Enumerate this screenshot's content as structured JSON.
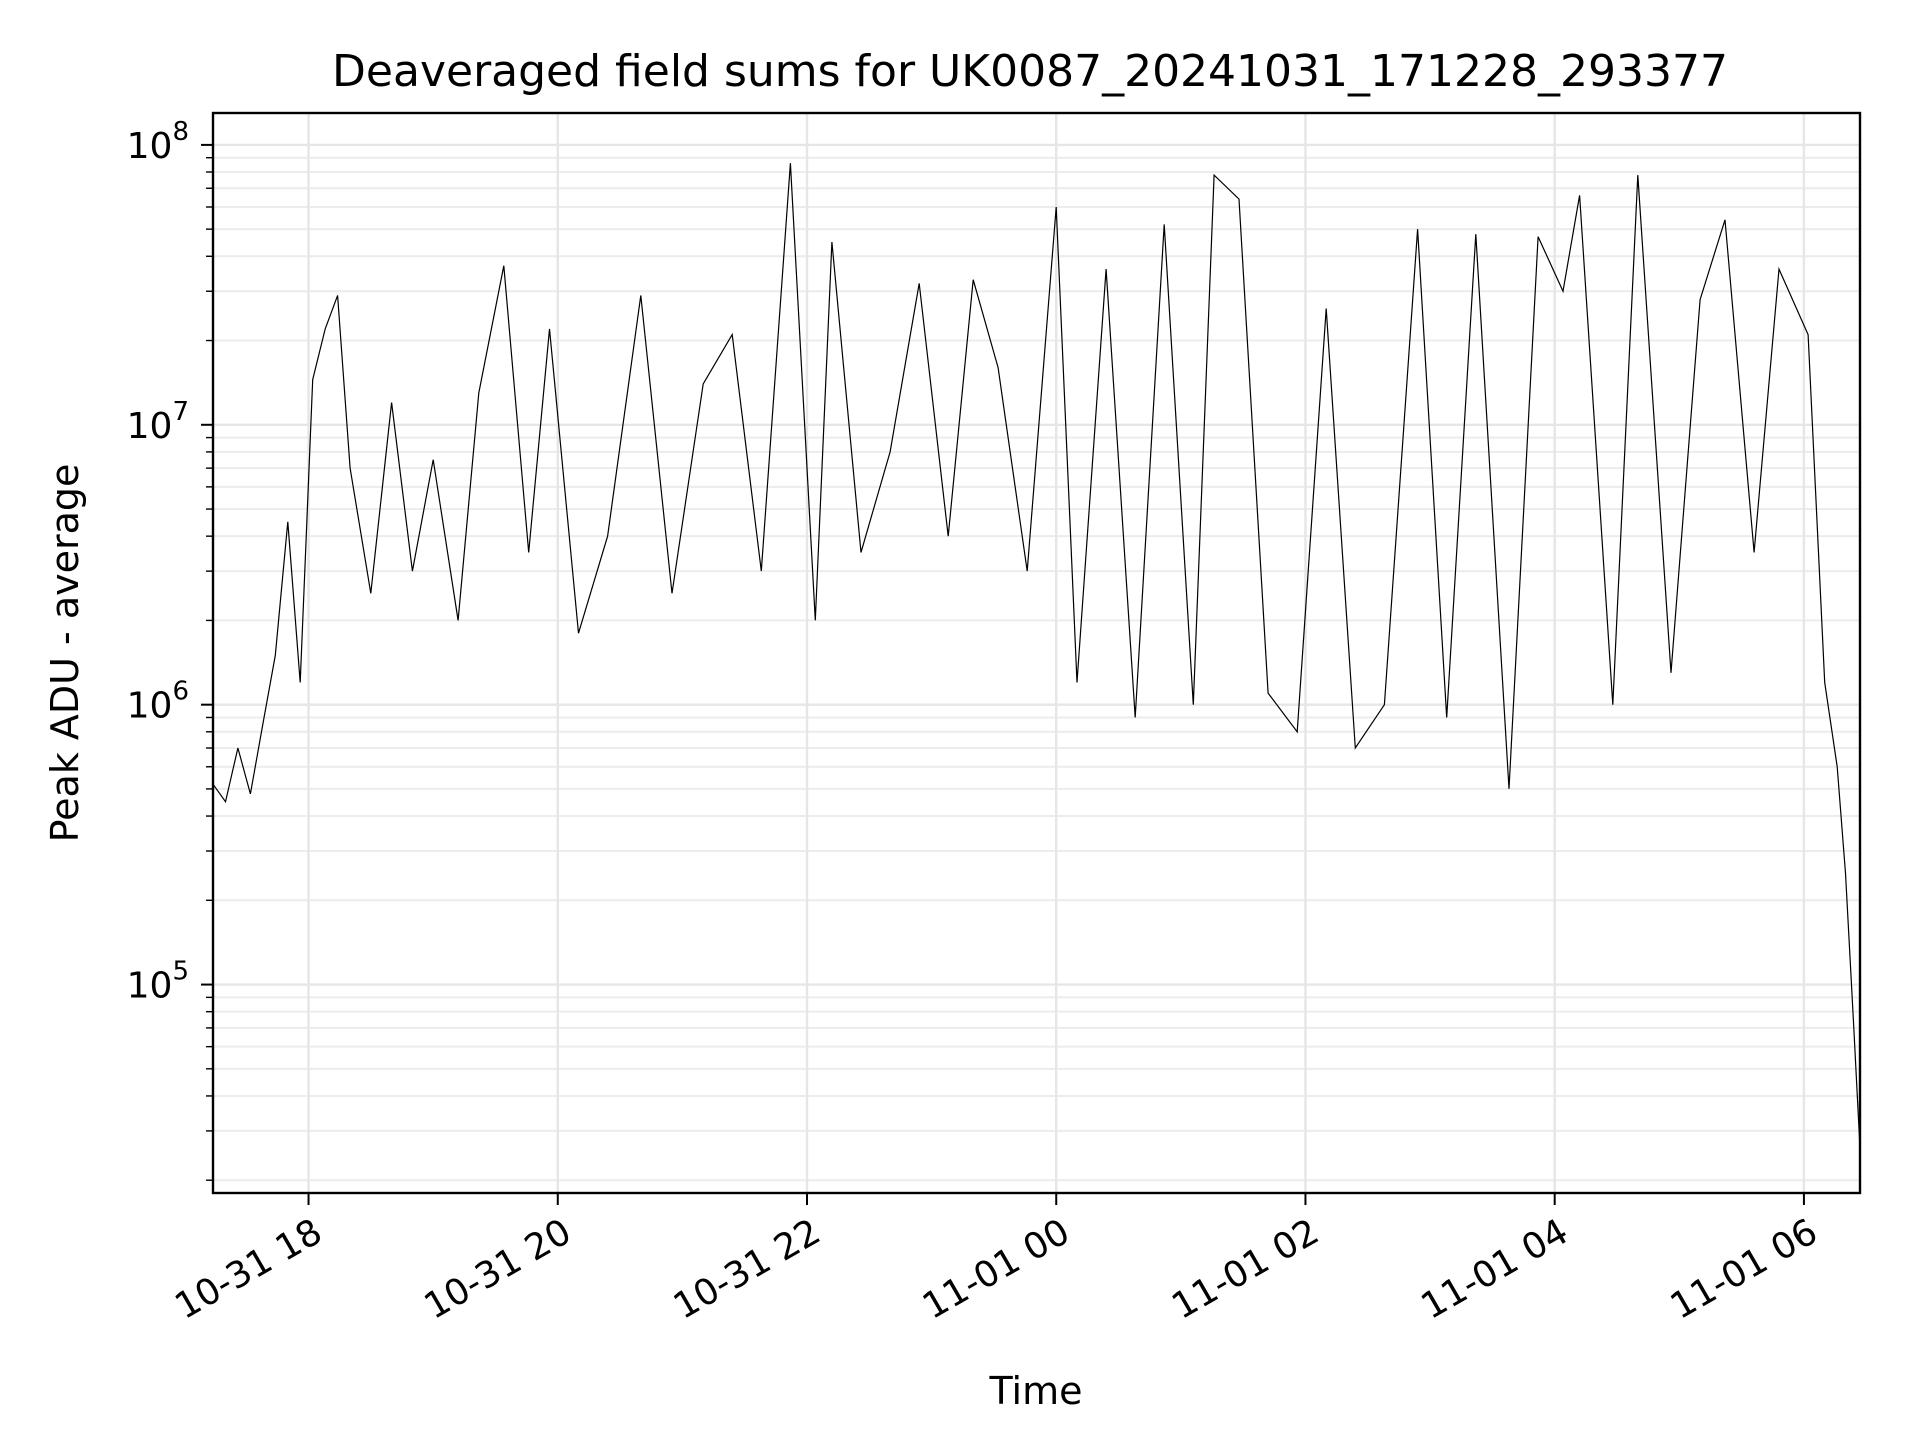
{
  "chart_data": {
    "type": "line",
    "title": "Deaveraged field sums for UK0087_20241031_171228_293377",
    "xlabel": "Time",
    "ylabel": "Peak ADU - average",
    "yscale": "log",
    "ylim": [
      18000,
      130000000
    ],
    "xlim": [
      "2024-10-31 17:14",
      "2024-11-01 06:27"
    ],
    "x_ticks": [
      {
        "value": "2024-10-31 18:00",
        "label": "10-31 18"
      },
      {
        "value": "2024-10-31 20:00",
        "label": "10-31 20"
      },
      {
        "value": "2024-10-31 22:00",
        "label": "10-31 22"
      },
      {
        "value": "2024-11-01 00:00",
        "label": "11-01 00"
      },
      {
        "value": "2024-11-01 02:00",
        "label": "11-01 02"
      },
      {
        "value": "2024-11-01 04:00",
        "label": "11-01 04"
      },
      {
        "value": "2024-11-01 06:00",
        "label": "11-01 06"
      }
    ],
    "y_ticks": [
      {
        "value": 100000,
        "base": "10",
        "exp": "5"
      },
      {
        "value": 1000000,
        "base": "10",
        "exp": "6"
      },
      {
        "value": 10000000,
        "base": "10",
        "exp": "7"
      },
      {
        "value": 100000000,
        "base": "10",
        "exp": "8"
      }
    ],
    "grid": true,
    "series": [
      {
        "color": "#000000",
        "points": [
          [
            "2024-10-31 17:14",
            520000
          ],
          [
            "2024-10-31 17:20",
            450000
          ],
          [
            "2024-10-31 17:26",
            700000
          ],
          [
            "2024-10-31 17:32",
            480000
          ],
          [
            "2024-10-31 17:38",
            850000
          ],
          [
            "2024-10-31 17:44",
            1500000
          ],
          [
            "2024-10-31 17:50",
            4500000
          ],
          [
            "2024-10-31 17:56",
            1200000
          ],
          [
            "2024-10-31 18:02",
            14500000
          ],
          [
            "2024-10-31 18:08",
            22000000
          ],
          [
            "2024-10-31 18:14",
            29000000
          ],
          [
            "2024-10-31 18:20",
            7000000
          ],
          [
            "2024-10-31 18:30",
            2500000
          ],
          [
            "2024-10-31 18:40",
            12000000
          ],
          [
            "2024-10-31 18:50",
            3000000
          ],
          [
            "2024-10-31 19:00",
            7500000
          ],
          [
            "2024-10-31 19:12",
            2000000
          ],
          [
            "2024-10-31 19:22",
            13000000
          ],
          [
            "2024-10-31 19:34",
            37000000
          ],
          [
            "2024-10-31 19:46",
            3500000
          ],
          [
            "2024-10-31 19:56",
            22000000
          ],
          [
            "2024-10-31 20:10",
            1800000
          ],
          [
            "2024-10-31 20:24",
            4000000
          ],
          [
            "2024-10-31 20:40",
            29000000
          ],
          [
            "2024-10-31 20:55",
            2500000
          ],
          [
            "2024-10-31 21:10",
            14000000
          ],
          [
            "2024-10-31 21:24",
            21000000
          ],
          [
            "2024-10-31 21:38",
            3000000
          ],
          [
            "2024-10-31 21:52",
            86000000
          ],
          [
            "2024-10-31 22:04",
            2000000
          ],
          [
            "2024-10-31 22:12",
            45000000
          ],
          [
            "2024-10-31 22:26",
            3500000
          ],
          [
            "2024-10-31 22:40",
            8000000
          ],
          [
            "2024-10-31 22:54",
            32000000
          ],
          [
            "2024-10-31 23:08",
            4000000
          ],
          [
            "2024-10-31 23:20",
            33000000
          ],
          [
            "2024-10-31 23:32",
            16000000
          ],
          [
            "2024-10-31 23:46",
            3000000
          ],
          [
            "2024-11-01 00:00",
            60000000
          ],
          [
            "2024-11-01 00:10",
            1200000
          ],
          [
            "2024-11-01 00:24",
            36000000
          ],
          [
            "2024-11-01 00:38",
            900000
          ],
          [
            "2024-11-01 00:52",
            52000000
          ],
          [
            "2024-11-01 01:06",
            1000000
          ],
          [
            "2024-11-01 01:16",
            78000000
          ],
          [
            "2024-11-01 01:28",
            64000000
          ],
          [
            "2024-11-01 01:42",
            1100000
          ],
          [
            "2024-11-01 01:56",
            800000
          ],
          [
            "2024-11-01 02:10",
            26000000
          ],
          [
            "2024-11-01 02:24",
            700000
          ],
          [
            "2024-11-01 02:38",
            1000000
          ],
          [
            "2024-11-01 02:54",
            50000000
          ],
          [
            "2024-11-01 03:08",
            900000
          ],
          [
            "2024-11-01 03:22",
            48000000
          ],
          [
            "2024-11-01 03:38",
            500000
          ],
          [
            "2024-11-01 03:52",
            47000000
          ],
          [
            "2024-11-01 04:04",
            30000000
          ],
          [
            "2024-11-01 04:12",
            66000000
          ],
          [
            "2024-11-01 04:28",
            1000000
          ],
          [
            "2024-11-01 04:40",
            78000000
          ],
          [
            "2024-11-01 04:56",
            1300000
          ],
          [
            "2024-11-01 05:10",
            28000000
          ],
          [
            "2024-11-01 05:22",
            54000000
          ],
          [
            "2024-11-01 05:36",
            3500000
          ],
          [
            "2024-11-01 05:48",
            36000000
          ],
          [
            "2024-11-01 06:02",
            21000000
          ],
          [
            "2024-11-01 06:10",
            1200000
          ],
          [
            "2024-11-01 06:16",
            600000
          ],
          [
            "2024-11-01 06:20",
            250000
          ],
          [
            "2024-11-01 06:24",
            70000
          ],
          [
            "2024-11-01 06:27",
            26000
          ]
        ]
      }
    ]
  }
}
